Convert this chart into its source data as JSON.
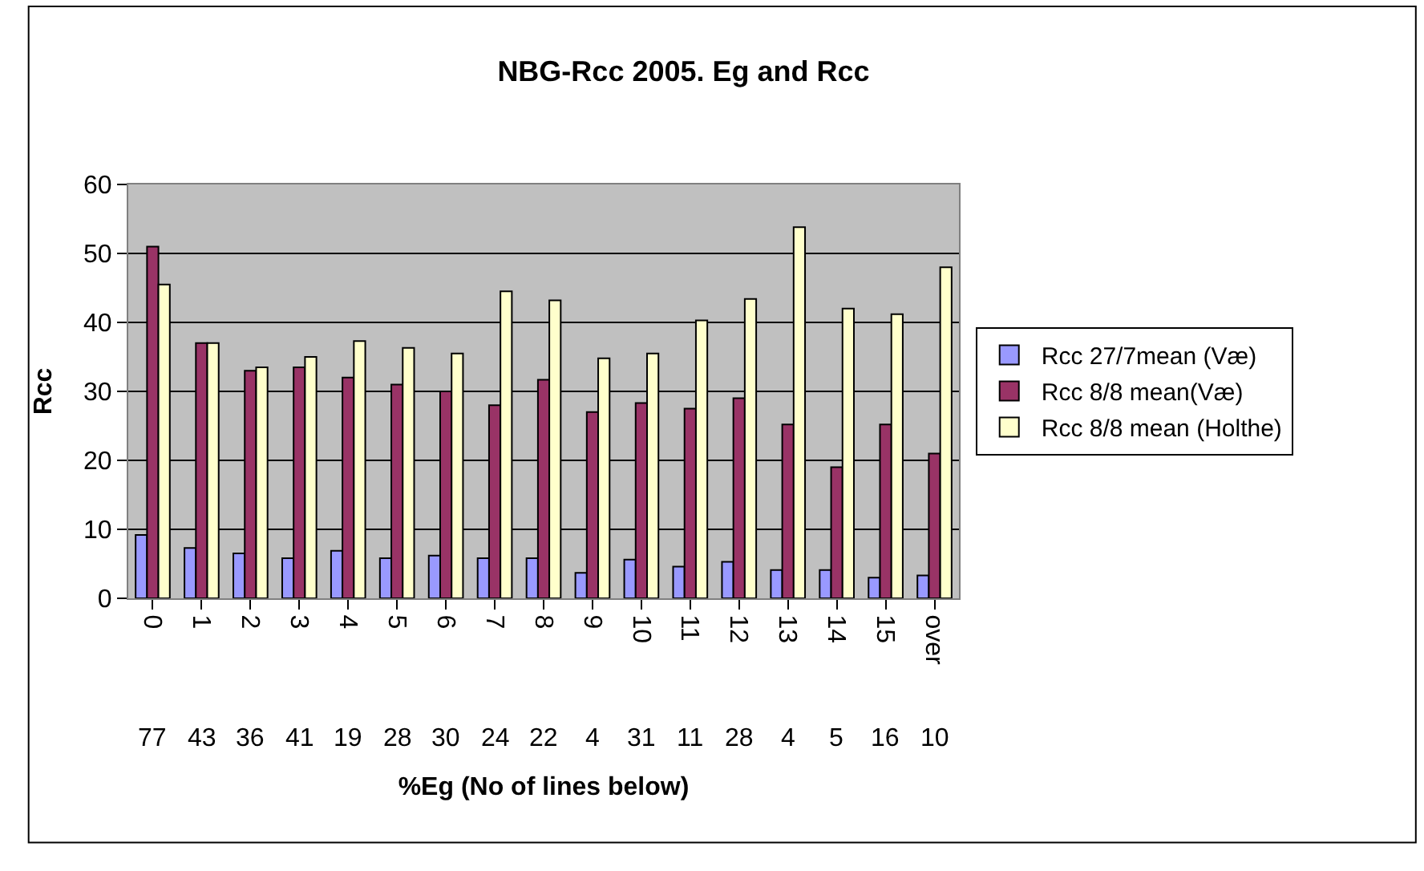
{
  "chart_data": {
    "type": "bar",
    "title": "NBG-Rcc 2005. Eg and Rcc",
    "xlabel": "%Eg (No of lines below)",
    "ylabel": "Rcc",
    "categories": [
      "0",
      "1",
      "2",
      "3",
      "4",
      "5",
      "6",
      "7",
      "8",
      "9",
      "10",
      "11",
      "12",
      "13",
      "14",
      "15",
      "over"
    ],
    "series": [
      {
        "name": "Rcc 27/7mean (Væ)",
        "color": "#9999ff",
        "values": [
          9.2,
          7.3,
          6.5,
          5.8,
          6.9,
          5.8,
          6.2,
          5.8,
          5.8,
          3.7,
          5.6,
          4.6,
          5.3,
          4.1,
          4.1,
          3.0,
          3.3
        ]
      },
      {
        "name": "Rcc 8/8 mean(Væ)",
        "color": "#993366",
        "values": [
          51,
          37,
          33,
          33.5,
          32,
          31,
          30,
          28,
          31.7,
          27,
          28.3,
          27.5,
          29,
          25.2,
          19,
          25.2,
          21
        ]
      },
      {
        "name": "Rcc 8/8 mean (Holthe)",
        "color": "#ffffcc",
        "values": [
          45.5,
          37,
          33.5,
          35,
          37.3,
          36.3,
          35.5,
          44.5,
          43.2,
          34.8,
          35.5,
          40.3,
          43.4,
          53.8,
          42,
          41.2,
          48
        ]
      }
    ],
    "annotations": [
      "77",
      "43",
      "36",
      "41",
      "19",
      "28",
      "30",
      "24",
      "22",
      "4",
      "31",
      "11",
      "28",
      "4",
      "5",
      "16",
      "10"
    ],
    "ylim": [
      0,
      60
    ],
    "yticks": [
      0,
      10,
      20,
      30,
      40,
      50,
      60
    ],
    "grid": "y",
    "legend": "right"
  }
}
